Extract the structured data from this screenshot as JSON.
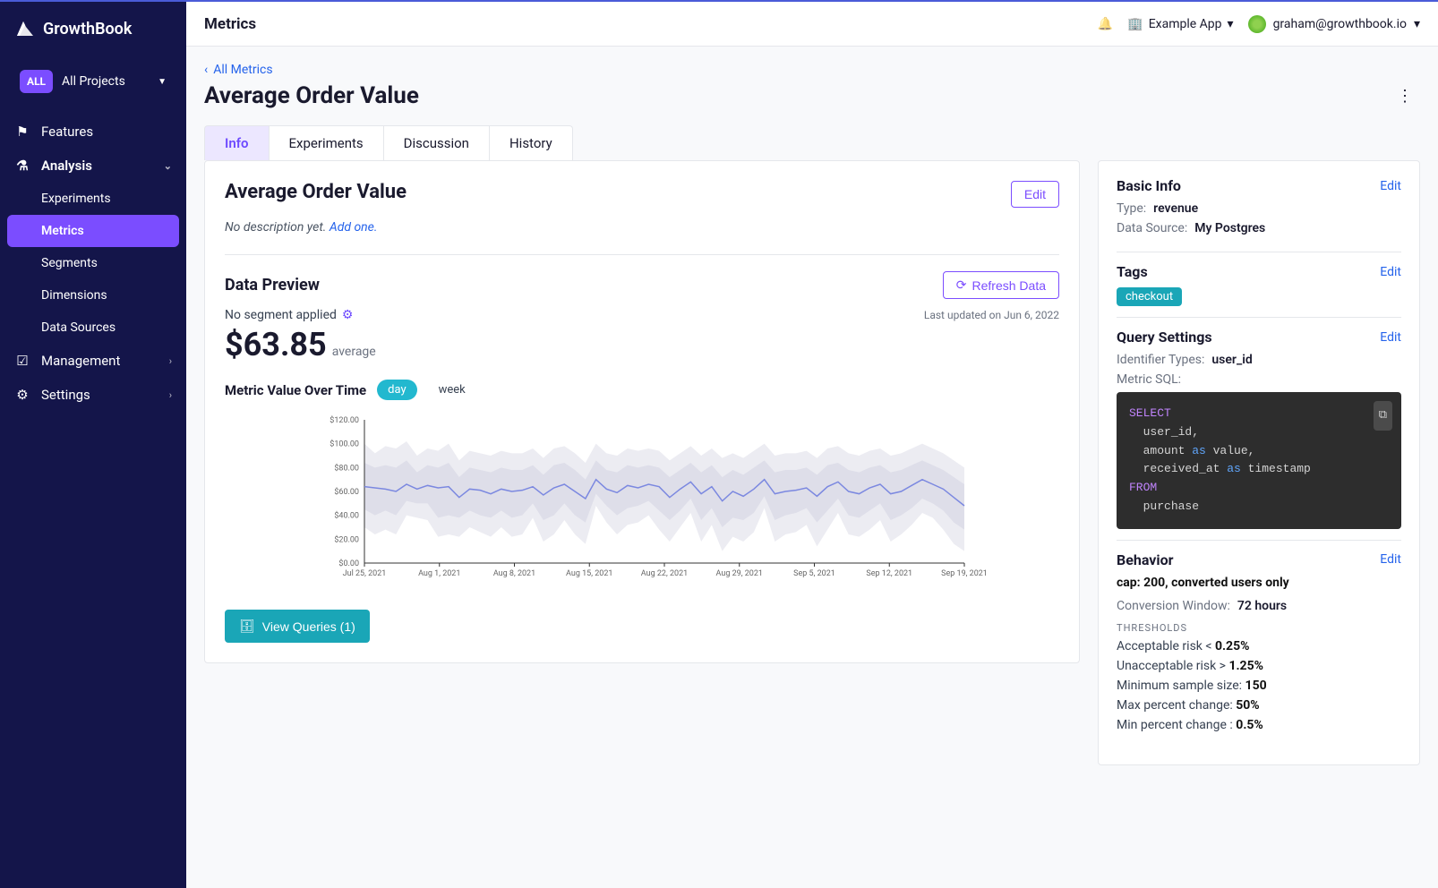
{
  "brand": "GrowthBook",
  "projectSelector": {
    "badge": "ALL",
    "label": "All Projects"
  },
  "sidebar": {
    "features": "Features",
    "analysis": "Analysis",
    "experiments": "Experiments",
    "metrics": "Metrics",
    "segments": "Segments",
    "dimensions": "Dimensions",
    "dataSources": "Data Sources",
    "management": "Management",
    "settings": "Settings"
  },
  "topbar": {
    "title": "Metrics",
    "appSwitcher": "Example App",
    "userEmail": "graham@growthbook.io"
  },
  "breadcrumb": {
    "label": "All Metrics"
  },
  "pageTitle": "Average Order Value",
  "tabs": [
    "Info",
    "Experiments",
    "Discussion",
    "History"
  ],
  "activeTab": "Info",
  "mainCard": {
    "title": "Average Order Value",
    "editLabel": "Edit",
    "noDescription": "No description yet.",
    "addOne": "Add one.",
    "dataPreviewTitle": "Data Preview",
    "refreshLabel": "Refresh Data",
    "segmentText": "No segment applied",
    "lastUpdated": "Last updated on Jun 6, 2022",
    "bigValue": "$63.85",
    "avgLabel": "average",
    "chartTitle": "Metric Value Over Time",
    "granularity": {
      "active": "day",
      "inactive": "week"
    },
    "viewQueries": "View Queries (1)"
  },
  "chart": {
    "yTicks": [
      "$120.00",
      "$100.00",
      "$80.00",
      "$60.00",
      "$40.00",
      "$20.00",
      "$0.00"
    ],
    "xTicks": [
      "Jul 25, 2021",
      "Aug 1, 2021",
      "Aug 8, 2021",
      "Aug 15, 2021",
      "Aug 22, 2021",
      "Aug 29, 2021",
      "Sep 5, 2021",
      "Sep 12, 2021",
      "Sep 19, 2021"
    ],
    "lineColor": "#7b88e0",
    "bandColor": "#d8d8e6",
    "bandColor2": "#ececf2",
    "axisColor": "#333",
    "gridColor": "#f0f0f0",
    "yMax": 120,
    "series": [
      64,
      63,
      62,
      60,
      66,
      62,
      65,
      63,
      64,
      55,
      62,
      61,
      58,
      62,
      60,
      61,
      64,
      57,
      63,
      66,
      60,
      54,
      70,
      62,
      59,
      65,
      63,
      66,
      64,
      55,
      62,
      68,
      58,
      64,
      52,
      60,
      56,
      62,
      70,
      58,
      60,
      61,
      63,
      56,
      64,
      68,
      60,
      58,
      63,
      66,
      58,
      60,
      65,
      70,
      66,
      62,
      55,
      48
    ],
    "bandInnerLow": [
      45,
      40,
      44,
      40,
      52,
      50,
      50,
      38,
      40,
      38,
      44,
      40,
      38,
      44,
      38,
      40,
      50,
      36,
      40,
      50,
      40,
      34,
      58,
      48,
      40,
      46,
      48,
      52,
      44,
      36,
      44,
      54,
      36,
      46,
      30,
      38,
      36,
      42,
      56,
      36,
      40,
      42,
      46,
      34,
      44,
      54,
      40,
      38,
      44,
      50,
      36,
      40,
      46,
      54,
      50,
      44,
      34,
      28
    ],
    "bandInnerHigh": [
      84,
      80,
      82,
      80,
      86,
      76,
      82,
      80,
      84,
      72,
      80,
      78,
      76,
      80,
      78,
      78,
      82,
      74,
      82,
      84,
      78,
      70,
      86,
      78,
      76,
      82,
      80,
      82,
      80,
      72,
      78,
      84,
      76,
      82,
      72,
      78,
      74,
      80,
      86,
      76,
      78,
      78,
      80,
      74,
      82,
      84,
      78,
      76,
      80,
      82,
      76,
      78,
      82,
      86,
      82,
      78,
      72,
      66
    ],
    "bandOuterLow": [
      30,
      24,
      28,
      24,
      40,
      38,
      36,
      22,
      24,
      22,
      30,
      26,
      22,
      30,
      22,
      24,
      38,
      18,
      24,
      36,
      24,
      16,
      48,
      34,
      24,
      32,
      34,
      40,
      28,
      18,
      30,
      42,
      18,
      32,
      10,
      22,
      18,
      26,
      46,
      18,
      24,
      26,
      32,
      14,
      28,
      42,
      24,
      22,
      28,
      36,
      18,
      24,
      32,
      42,
      38,
      28,
      16,
      10
    ],
    "bandOuterHigh": [
      100,
      92,
      98,
      96,
      102,
      90,
      96,
      94,
      100,
      86,
      94,
      92,
      90,
      94,
      92,
      92,
      96,
      88,
      96,
      98,
      92,
      84,
      100,
      92,
      90,
      96,
      94,
      96,
      94,
      86,
      92,
      98,
      90,
      96,
      88,
      92,
      88,
      94,
      100,
      90,
      92,
      92,
      94,
      88,
      96,
      98,
      92,
      90,
      94,
      96,
      90,
      92,
      96,
      100,
      96,
      92,
      86,
      80
    ]
  },
  "side": {
    "basicInfo": {
      "title": "Basic Info",
      "edit": "Edit",
      "typeLabel": "Type:",
      "typeValue": "revenue",
      "dsLabel": "Data Source:",
      "dsValue": "My Postgres"
    },
    "tags": {
      "title": "Tags",
      "edit": "Edit",
      "chip": "checkout"
    },
    "query": {
      "title": "Query Settings",
      "edit": "Edit",
      "idLabel": "Identifier Types:",
      "idValue": "user_id",
      "sqlLabel": "Metric SQL:",
      "sql": {
        "select": "SELECT",
        "l1": "user_id,",
        "l2a": "amount ",
        "l2b": "as",
        "l2c": " value,",
        "l3a": "received_at ",
        "l3b": "as",
        "l3c": " timestamp",
        "from": "FROM",
        "l4": "purchase"
      }
    },
    "behavior": {
      "title": "Behavior",
      "edit": "Edit",
      "cap": "cap: 200, converted users only",
      "convLabel": "Conversion Window:",
      "convValue": "72 hours",
      "thresholds": "THRESHOLDS",
      "acceptableRisk": {
        "label": "Acceptable risk < ",
        "value": "0.25%"
      },
      "unacceptableRisk": {
        "label": "Unacceptable risk > ",
        "value": "1.25%"
      },
      "minSample": {
        "label": "Minimum sample size: ",
        "value": "150"
      },
      "maxPct": {
        "label": "Max percent change: ",
        "value": "50%"
      },
      "minPct": {
        "label": "Min percent change : ",
        "value": "0.5%"
      }
    }
  }
}
